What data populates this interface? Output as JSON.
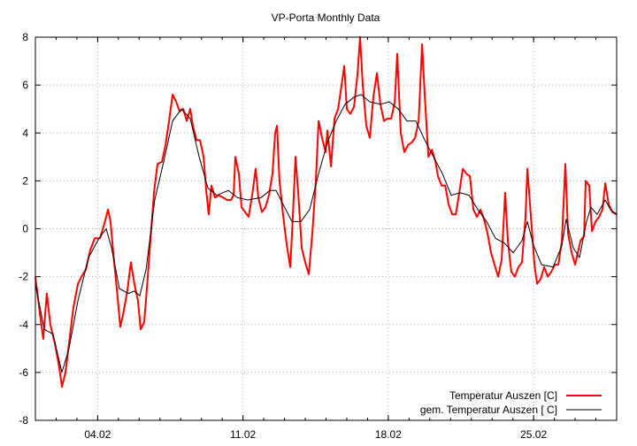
{
  "chart_data": {
    "type": "line",
    "title": "VP-Porta Monthly Data",
    "xlabel": "",
    "ylabel": "",
    "xlim": [
      1,
      29
    ],
    "ylim": [
      -8,
      8
    ],
    "yticks": [
      -8,
      -6,
      -4,
      -2,
      0,
      2,
      4,
      6,
      8
    ],
    "xticks": [
      {
        "day": 4,
        "label": "04.02"
      },
      {
        "day": 11,
        "label": "11.02"
      },
      {
        "day": 18,
        "label": "18.02"
      },
      {
        "day": 25,
        "label": "25.02"
      }
    ],
    "x_unit": "day of February",
    "grid": true,
    "legend_position": "bottom-right",
    "series": [
      {
        "name": "Temperatur Auszen [C]",
        "color": "#ff0000",
        "points": [
          [
            1.0,
            -2.0
          ],
          [
            1.21,
            -3.5
          ],
          [
            1.38,
            -4.6
          ],
          [
            1.55,
            -2.7
          ],
          [
            1.72,
            -4.0
          ],
          [
            1.94,
            -4.8
          ],
          [
            2.15,
            -5.8
          ],
          [
            2.28,
            -6.6
          ],
          [
            2.45,
            -6.0
          ],
          [
            2.62,
            -4.8
          ],
          [
            2.83,
            -3.3
          ],
          [
            3.05,
            -2.3
          ],
          [
            3.22,
            -2.0
          ],
          [
            3.43,
            -1.7
          ],
          [
            3.64,
            -0.9
          ],
          [
            3.86,
            -0.4
          ],
          [
            4.11,
            -0.4
          ],
          [
            4.32,
            0.2
          ],
          [
            4.5,
            0.8
          ],
          [
            4.62,
            0.3
          ],
          [
            4.75,
            -1.0
          ],
          [
            4.92,
            -2.5
          ],
          [
            5.09,
            -4.1
          ],
          [
            5.22,
            -3.6
          ],
          [
            5.43,
            -2.6
          ],
          [
            5.6,
            -1.4
          ],
          [
            5.77,
            -2.3
          ],
          [
            5.94,
            -3.0
          ],
          [
            6.07,
            -4.2
          ],
          [
            6.24,
            -3.9
          ],
          [
            6.37,
            -2.5
          ],
          [
            6.54,
            -0.5
          ],
          [
            6.71,
            1.5
          ],
          [
            6.88,
            2.7
          ],
          [
            7.1,
            2.8
          ],
          [
            7.27,
            3.5
          ],
          [
            7.44,
            4.5
          ],
          [
            7.61,
            5.6
          ],
          [
            7.78,
            5.3
          ],
          [
            7.95,
            4.9
          ],
          [
            8.12,
            5.0
          ],
          [
            8.29,
            4.5
          ],
          [
            8.46,
            5.0
          ],
          [
            8.59,
            4.3
          ],
          [
            8.76,
            3.7
          ],
          [
            8.93,
            3.7
          ],
          [
            9.1,
            3.0
          ],
          [
            9.23,
            1.6
          ],
          [
            9.35,
            0.6
          ],
          [
            9.48,
            1.8
          ],
          [
            9.65,
            1.3
          ],
          [
            9.82,
            1.4
          ],
          [
            10.04,
            1.3
          ],
          [
            10.25,
            1.2
          ],
          [
            10.42,
            1.2
          ],
          [
            10.55,
            1.4
          ],
          [
            10.63,
            3.0
          ],
          [
            10.8,
            2.3
          ],
          [
            10.93,
            0.9
          ],
          [
            11.1,
            0.7
          ],
          [
            11.27,
            0.5
          ],
          [
            11.44,
            1.4
          ],
          [
            11.61,
            2.5
          ],
          [
            11.74,
            1.3
          ],
          [
            11.91,
            0.7
          ],
          [
            12.08,
            0.9
          ],
          [
            12.25,
            1.4
          ],
          [
            12.42,
            2.3
          ],
          [
            12.55,
            4.0
          ],
          [
            12.64,
            4.3
          ],
          [
            12.76,
            2.0
          ],
          [
            12.94,
            0.5
          ],
          [
            13.11,
            -0.7
          ],
          [
            13.28,
            -1.6
          ],
          [
            13.4,
            0.5
          ],
          [
            13.53,
            3.0
          ],
          [
            13.66,
            1.5
          ],
          [
            13.83,
            -0.8
          ],
          [
            14.0,
            -1.4
          ],
          [
            14.17,
            -1.9
          ],
          [
            14.34,
            -0.2
          ],
          [
            14.51,
            2.0
          ],
          [
            14.64,
            4.5
          ],
          [
            14.81,
            3.8
          ],
          [
            14.98,
            3.2
          ],
          [
            15.07,
            4.1
          ],
          [
            15.24,
            2.6
          ],
          [
            15.41,
            4.6
          ],
          [
            15.58,
            5.0
          ],
          [
            15.75,
            6.0
          ],
          [
            15.88,
            6.8
          ],
          [
            16.0,
            5.0
          ],
          [
            16.17,
            4.8
          ],
          [
            16.35,
            5.1
          ],
          [
            16.52,
            6.5
          ],
          [
            16.64,
            8.0
          ],
          [
            16.77,
            6.0
          ],
          [
            16.94,
            4.3
          ],
          [
            17.11,
            3.8
          ],
          [
            17.28,
            5.5
          ],
          [
            17.45,
            6.5
          ],
          [
            17.62,
            5.2
          ],
          [
            17.79,
            4.5
          ],
          [
            17.96,
            4.6
          ],
          [
            18.14,
            4.6
          ],
          [
            18.31,
            5.3
          ],
          [
            18.43,
            7.3
          ],
          [
            18.6,
            4.0
          ],
          [
            18.77,
            3.2
          ],
          [
            18.95,
            3.5
          ],
          [
            19.12,
            3.6
          ],
          [
            19.29,
            3.8
          ],
          [
            19.46,
            4.5
          ],
          [
            19.63,
            7.7
          ],
          [
            19.76,
            5.5
          ],
          [
            19.93,
            3.0
          ],
          [
            20.1,
            3.3
          ],
          [
            20.27,
            2.8
          ],
          [
            20.39,
            2.2
          ],
          [
            20.57,
            1.8
          ],
          [
            20.74,
            1.8
          ],
          [
            20.91,
            1.0
          ],
          [
            21.08,
            0.6
          ],
          [
            21.25,
            0.6
          ],
          [
            21.42,
            1.5
          ],
          [
            21.59,
            2.5
          ],
          [
            21.76,
            2.3
          ],
          [
            21.93,
            2.2
          ],
          [
            22.1,
            0.8
          ],
          [
            22.27,
            0.5
          ],
          [
            22.44,
            0.8
          ],
          [
            22.61,
            0.4
          ],
          [
            22.78,
            -0.2
          ],
          [
            22.95,
            -1.0
          ],
          [
            23.12,
            -1.5
          ],
          [
            23.29,
            -2.0
          ],
          [
            23.46,
            -1.3
          ],
          [
            23.63,
            1.5
          ],
          [
            23.76,
            -0.5
          ],
          [
            23.93,
            -1.8
          ],
          [
            24.1,
            -2.0
          ],
          [
            24.27,
            -1.6
          ],
          [
            24.44,
            -1.4
          ],
          [
            24.61,
            0.5
          ],
          [
            24.7,
            2.5
          ],
          [
            24.87,
            0.5
          ],
          [
            25.04,
            -1.5
          ],
          [
            25.17,
            -2.3
          ],
          [
            25.34,
            -2.1
          ],
          [
            25.51,
            -1.6
          ],
          [
            25.68,
            -2.0
          ],
          [
            25.85,
            -1.8
          ],
          [
            26.02,
            -1.5
          ],
          [
            26.19,
            -1.5
          ],
          [
            26.36,
            -0.5
          ],
          [
            26.53,
            2.7
          ],
          [
            26.66,
            -0.2
          ],
          [
            26.83,
            -1.0
          ],
          [
            27.0,
            -1.5
          ],
          [
            27.13,
            -1.0
          ],
          [
            27.26,
            -0.5
          ],
          [
            27.43,
            -0.3
          ],
          [
            27.51,
            2.0
          ],
          [
            27.68,
            1.8
          ],
          [
            27.81,
            -0.1
          ],
          [
            27.98,
            0.3
          ],
          [
            28.15,
            0.5
          ],
          [
            28.32,
            0.8
          ],
          [
            28.45,
            1.9
          ],
          [
            28.62,
            1.0
          ],
          [
            28.79,
            0.7
          ],
          [
            29.0,
            0.6
          ]
        ]
      },
      {
        "name": "gem. Temperatur Auszen [ C]",
        "color": "#000000",
        "points": [
          [
            1.0,
            -2.3
          ],
          [
            1.43,
            -4.2
          ],
          [
            1.85,
            -4.4
          ],
          [
            2.28,
            -6.0
          ],
          [
            2.62,
            -5.0
          ],
          [
            3.05,
            -3.0
          ],
          [
            3.56,
            -1.2
          ],
          [
            4.07,
            -0.4
          ],
          [
            4.41,
            0.0
          ],
          [
            4.67,
            -0.8
          ],
          [
            5.05,
            -2.5
          ],
          [
            5.48,
            -2.7
          ],
          [
            5.77,
            -2.6
          ],
          [
            6.03,
            -2.8
          ],
          [
            6.33,
            -1.7
          ],
          [
            6.75,
            1.2
          ],
          [
            7.18,
            2.8
          ],
          [
            7.61,
            4.5
          ],
          [
            8.03,
            5.0
          ],
          [
            8.46,
            4.6
          ],
          [
            8.89,
            3.0
          ],
          [
            9.31,
            1.7
          ],
          [
            9.74,
            1.4
          ],
          [
            10.3,
            1.6
          ],
          [
            10.72,
            1.3
          ],
          [
            11.23,
            1.2
          ],
          [
            11.87,
            1.3
          ],
          [
            12.3,
            1.6
          ],
          [
            12.59,
            1.6
          ],
          [
            12.94,
            1.0
          ],
          [
            13.36,
            0.3
          ],
          [
            13.79,
            0.3
          ],
          [
            14.21,
            0.8
          ],
          [
            14.64,
            2.3
          ],
          [
            15.07,
            3.6
          ],
          [
            15.49,
            4.5
          ],
          [
            15.92,
            5.2
          ],
          [
            16.35,
            5.5
          ],
          [
            16.69,
            5.6
          ],
          [
            17.11,
            5.3
          ],
          [
            17.62,
            5.2
          ],
          [
            18.05,
            5.3
          ],
          [
            18.48,
            5.0
          ],
          [
            18.9,
            4.5
          ],
          [
            19.33,
            4.5
          ],
          [
            19.76,
            3.7
          ],
          [
            20.18,
            3.0
          ],
          [
            20.61,
            2.3
          ],
          [
            21.03,
            1.4
          ],
          [
            21.46,
            1.5
          ],
          [
            21.89,
            1.4
          ],
          [
            22.31,
            0.8
          ],
          [
            22.74,
            0.3
          ],
          [
            23.16,
            -0.4
          ],
          [
            23.59,
            -0.6
          ],
          [
            24.02,
            -1.0
          ],
          [
            24.44,
            -0.5
          ],
          [
            24.7,
            0.3
          ],
          [
            25.0,
            -0.7
          ],
          [
            25.38,
            -1.5
          ],
          [
            25.94,
            -1.6
          ],
          [
            26.36,
            -0.7
          ],
          [
            26.57,
            0.4
          ],
          [
            26.91,
            -0.8
          ],
          [
            27.21,
            -1.2
          ],
          [
            27.55,
            0.3
          ],
          [
            27.76,
            0.9
          ],
          [
            28.06,
            0.6
          ],
          [
            28.45,
            1.2
          ],
          [
            28.7,
            0.8
          ],
          [
            29.0,
            0.6
          ]
        ]
      }
    ]
  }
}
